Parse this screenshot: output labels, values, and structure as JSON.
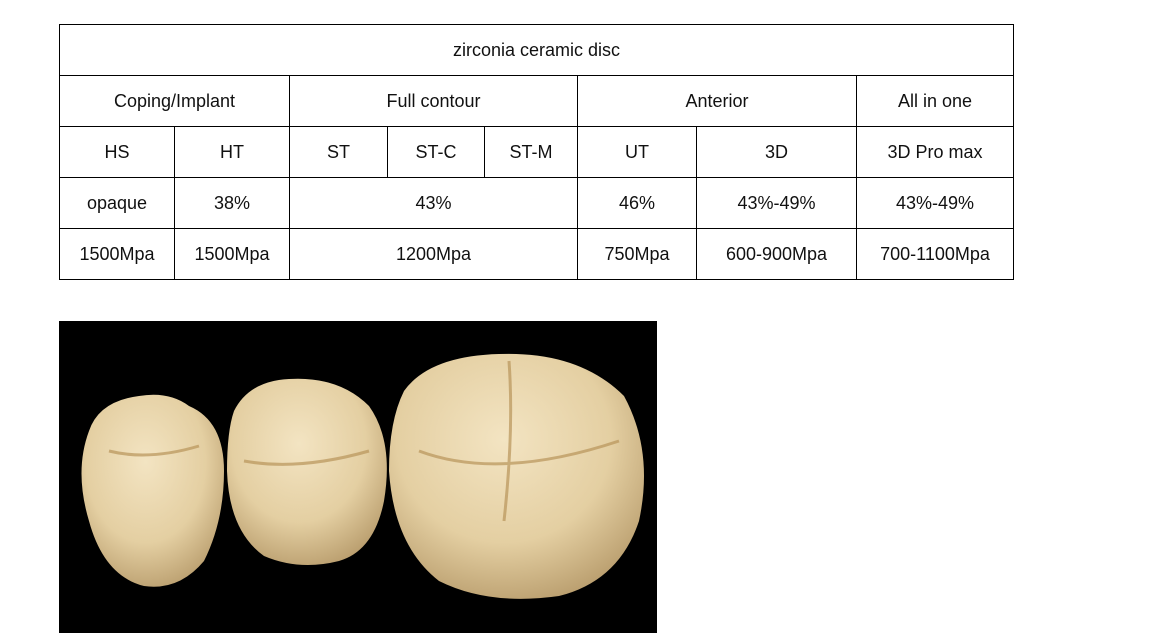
{
  "table": {
    "title": "zirconia ceramic disc",
    "rows": [
      [
        "Coping/Implant",
        "Full contour",
        "Anterior",
        "All in one"
      ],
      [
        "HS",
        "HT",
        "ST",
        "ST-C",
        "ST-M",
        "UT",
        "3D",
        "3D Pro max"
      ],
      [
        "opaque",
        "38%",
        "43%",
        "46%",
        "43%-49%",
        "43%-49%"
      ],
      [
        "1500Mpa",
        "1500Mpa",
        "1200Mpa",
        "750Mpa",
        "600-900Mpa",
        "700-1100Mpa"
      ]
    ]
  }
}
